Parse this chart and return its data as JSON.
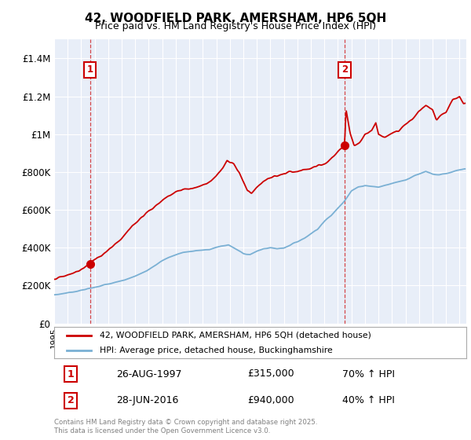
{
  "title": "42, WOODFIELD PARK, AMERSHAM, HP6 5QH",
  "subtitle": "Price paid vs. HM Land Registry's House Price Index (HPI)",
  "legend_line1": "42, WOODFIELD PARK, AMERSHAM, HP6 5QH (detached house)",
  "legend_line2": "HPI: Average price, detached house, Buckinghamshire",
  "sale1_date": "26-AUG-1997",
  "sale1_price": 315000,
  "sale1_year": 1997.65,
  "sale2_date": "28-JUN-2016",
  "sale2_price": 940000,
  "sale2_year": 2016.49,
  "sale1_hpi_pct": "70% ↑ HPI",
  "sale2_hpi_pct": "40% ↑ HPI",
  "footer": "Contains HM Land Registry data © Crown copyright and database right 2025.\nThis data is licensed under the Open Government Licence v3.0.",
  "red_color": "#cc0000",
  "blue_color": "#7ab0d4",
  "background_color": "#e8eef8",
  "ylim": [
    0,
    1500000
  ],
  "yticks": [
    0,
    200000,
    400000,
    600000,
    800000,
    1000000,
    1200000,
    1400000
  ],
  "ytick_labels": [
    "£0",
    "£200K",
    "£400K",
    "£600K",
    "£800K",
    "£1M",
    "£1.2M",
    "£1.4M"
  ],
  "xlim_start": 1995,
  "xlim_end": 2025.5
}
